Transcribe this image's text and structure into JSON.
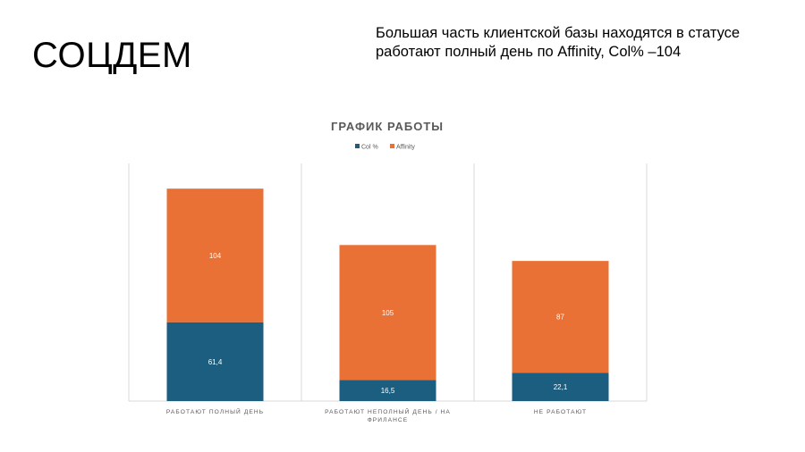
{
  "slide": {
    "title": "СОЦДЕМ",
    "subtitle_lines": [
      "Большая часть клиентской базы находятся в  статусе",
      "работают полный день по Affinity, Col% –104"
    ]
  },
  "colors": {
    "col_pct": "#1b5e80",
    "affinity": "#e97135",
    "grid": "#d9d9d9",
    "text": "#595959"
  },
  "chart_data": {
    "type": "bar",
    "stacked": true,
    "title": "ГРАФИК РАБОТЫ",
    "categories": [
      [
        "РАБОТАЮТ ПОЛНЫЙ ДЕНЬ"
      ],
      [
        "РАБОТАЮТ НЕПОЛНЫЙ ДЕНЬ / НА",
        "ФРИЛАНСЕ"
      ],
      [
        "НЕ РАБОТАЮТ"
      ]
    ],
    "series": [
      {
        "name": "Col %",
        "values": [
          61.4,
          16.5,
          22.1
        ],
        "labels": [
          "61,4",
          "16,5",
          "22,1"
        ],
        "color": "#1b5e80"
      },
      {
        "name": "Affinity",
        "values": [
          104,
          105,
          87
        ],
        "labels": [
          "104",
          "105",
          "87"
        ],
        "color": "#e97135"
      }
    ],
    "ylim": [
      0,
      185
    ],
    "legend_position": "top",
    "xlabel": "",
    "ylabel": ""
  }
}
